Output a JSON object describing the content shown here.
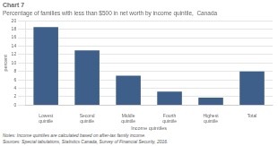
{
  "chart_data": {
    "type": "bar",
    "title": "Chart 7",
    "subtitle": "Percentage of families with less than $500 in net worth by income quintile,  Canada",
    "ylabel": "percent",
    "xlabel": "Income quintiles",
    "categories": [
      "Lowest quintile",
      "Second quintile",
      "Middle quintile",
      "Fourth quintile",
      "Highest quintile",
      "Total"
    ],
    "values": [
      18.5,
      13.0,
      7.0,
      3.2,
      1.8,
      8.0
    ],
    "color": "#3d5f8a",
    "ylim": [
      0,
      20
    ],
    "yticks": [
      0,
      2,
      4,
      6,
      8,
      10,
      12,
      14,
      16,
      18,
      20
    ],
    "grid": true,
    "annotations": [
      "Notes: Income quintiles are calculated based on after-tax family income.",
      "Sources: Special tabulations, Statistics Canada, Survey of Financial Security, 2016."
    ]
  }
}
